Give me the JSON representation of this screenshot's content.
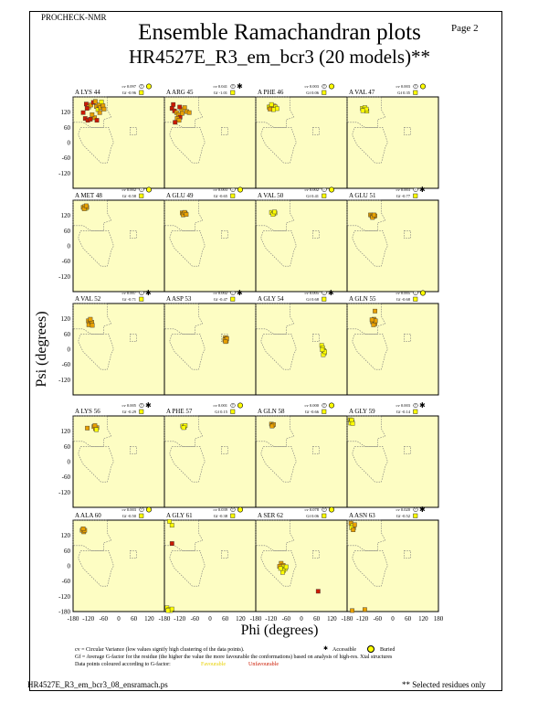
{
  "header": {
    "program": "PROCHECK-NMR",
    "page_label": "Page  2",
    "title": "Ensemble Ramachandran plots",
    "subtitle": "HR4527E_R3_em_bcr3 (20 models)**"
  },
  "footer": {
    "cv_note": "cv = Circular Variance (low values signify high clustering of the data points).",
    "gf_note": "Gf = Average G-factor for the residue (the higher the value the more favourable the conformations) based on analysis of high-res. Xtal structures",
    "colour_note": "Data points coloured according to G-factor:",
    "favourable_label": "Favourable",
    "unfavourable_label": "Unfavourable",
    "accessible_label": "Accessible",
    "buried_label": "Buried",
    "filename": "HR4527E_R3_em_bcr3_08_ensramach.ps",
    "selected_note": "** Selected residues only"
  },
  "colors": {
    "panel_bg": "#fdfdc3",
    "favourable": "#ffff00",
    "mid": "#e8a000",
    "unfavourable": "#cc1a00",
    "region_outline": "#777777"
  },
  "chart_data": {
    "type": "scatter",
    "xlabel": "Phi (degrees)",
    "ylabel": "Psi (degrees)",
    "xlim": [
      -180,
      180
    ],
    "ylim": [
      -180,
      180
    ],
    "xticks": [
      -180,
      -120,
      -60,
      0,
      60,
      120,
      180
    ],
    "yticks": [
      120,
      60,
      0,
      -60,
      -120
    ],
    "bottom_ytick": -180,
    "panels": [
      {
        "residue": "A LYS 44",
        "cv": "cv 0.097",
        "gf": "Gf -0.96",
        "acc": "buried",
        "points": [
          [
            -128,
            152,
            "u"
          ],
          [
            -118,
            140,
            "m"
          ],
          [
            -125,
            135,
            "u"
          ],
          [
            -110,
            148,
            "m"
          ],
          [
            -100,
            158,
            "u"
          ],
          [
            -92,
            162,
            "m"
          ],
          [
            -88,
            142,
            "m"
          ],
          [
            -82,
            130,
            "f"
          ],
          [
            -78,
            148,
            "m"
          ],
          [
            -72,
            138,
            "m"
          ],
          [
            -68,
            160,
            "f"
          ],
          [
            -62,
            145,
            "m"
          ],
          [
            -58,
            132,
            "m"
          ],
          [
            -140,
            118,
            "u"
          ],
          [
            -132,
            95,
            "u"
          ],
          [
            -122,
            88,
            "u"
          ],
          [
            -112,
            92,
            "u"
          ],
          [
            -95,
            98,
            "m"
          ],
          [
            -86,
            88,
            "u"
          ],
          [
            -75,
            118,
            "m"
          ],
          [
            -105,
            110,
            "m"
          ]
        ]
      },
      {
        "residue": "A ARG 45",
        "cv": "cv 0.041",
        "gf": "Gf -1.01",
        "acc": "accessible",
        "points": [
          [
            -150,
            135,
            "u"
          ],
          [
            -140,
            125,
            "u"
          ],
          [
            -132,
            118,
            "m"
          ],
          [
            -125,
            110,
            "m"
          ],
          [
            -118,
            100,
            "u"
          ],
          [
            -130,
            95,
            "m"
          ],
          [
            -122,
            88,
            "m"
          ],
          [
            -138,
            80,
            "u"
          ],
          [
            -112,
            130,
            "m"
          ],
          [
            -100,
            138,
            "m"
          ],
          [
            -92,
            122,
            "m"
          ],
          [
            -82,
            118,
            "m"
          ],
          [
            -145,
            150,
            "u"
          ],
          [
            -120,
            140,
            "u"
          ],
          [
            -110,
            115,
            "m"
          ]
        ]
      },
      {
        "residue": "A PHE 46",
        "cv": "cv 0.003",
        "gf": "Gf 0.06",
        "acc": "buried",
        "points": [
          [
            -128,
            140,
            "f"
          ],
          [
            -120,
            142,
            "f"
          ],
          [
            -114,
            136,
            "f"
          ],
          [
            -108,
            144,
            "m"
          ],
          [
            -102,
            140,
            "f"
          ],
          [
            -96,
            134,
            "f"
          ],
          [
            -110,
            130,
            "f"
          ],
          [
            -124,
            132,
            "m"
          ],
          [
            -118,
            150,
            "f"
          ]
        ]
      },
      {
        "residue": "A VAL 47",
        "cv": "cv 0.003",
        "gf": "Gf 0.35",
        "acc": "buried",
        "points": [
          [
            -120,
            135,
            "f"
          ],
          [
            -114,
            130,
            "f"
          ],
          [
            -108,
            128,
            "f"
          ],
          [
            -102,
            124,
            "f"
          ],
          [
            -110,
            138,
            "f"
          ],
          [
            -104,
            132,
            "f"
          ],
          [
            -118,
            126,
            "f"
          ]
        ]
      },
      {
        "residue": "A MET 48",
        "cv": "cv 0.002",
        "gf": "Gf -0.58",
        "acc": "buried",
        "points": [
          [
            -140,
            152,
            "m"
          ],
          [
            -134,
            155,
            "m"
          ],
          [
            -130,
            148,
            "f"
          ],
          [
            -126,
            152,
            "m"
          ],
          [
            -136,
            146,
            "m"
          ],
          [
            -128,
            158,
            "m"
          ]
        ]
      },
      {
        "residue": "A GLU 49",
        "cv": "cv 0.003",
        "gf": "Gf -0.65",
        "acc": "buried",
        "points": [
          [
            -110,
            130,
            "m"
          ],
          [
            -104,
            126,
            "m"
          ],
          [
            -98,
            128,
            "m"
          ],
          [
            -106,
            122,
            "m"
          ],
          [
            -100,
            132,
            "m"
          ],
          [
            -94,
            124,
            "m"
          ]
        ]
      },
      {
        "residue": "A VAL 50",
        "cv": "cv 0.002",
        "gf": "Gf 0.41",
        "acc": "buried",
        "points": [
          [
            -118,
            132,
            "f"
          ],
          [
            -110,
            128,
            "f"
          ],
          [
            -104,
            130,
            "f"
          ],
          [
            -112,
            124,
            "f"
          ],
          [
            -106,
            134,
            "f"
          ]
        ]
      },
      {
        "residue": "A GLU 51",
        "cv": "cv 0.003",
        "gf": "Gf -0.77",
        "acc": "accessible",
        "points": [
          [
            -88,
            122,
            "m"
          ],
          [
            -82,
            118,
            "m"
          ],
          [
            -76,
            116,
            "m"
          ],
          [
            -70,
            118,
            "m"
          ],
          [
            -80,
            112,
            "m"
          ],
          [
            -74,
            122,
            "m"
          ]
        ]
      },
      {
        "residue": "A VAL 52",
        "cv": "cv 0.007",
        "gf": "Gf -0.71",
        "acc": "accessible",
        "points": [
          [
            -120,
            112,
            "m"
          ],
          [
            -114,
            104,
            "m"
          ],
          [
            -110,
            98,
            "m"
          ],
          [
            -118,
            96,
            "m"
          ],
          [
            -106,
            106,
            "m"
          ],
          [
            -112,
            118,
            "m"
          ],
          [
            -104,
            94,
            "m"
          ]
        ]
      },
      {
        "residue": "A ASP 53",
        "cv": "cv 0.002",
        "gf": "Gf -0.47",
        "acc": "accessible",
        "points": [
          [
            60,
            45,
            "m"
          ],
          [
            62,
            38,
            "m"
          ],
          [
            64,
            32,
            "m"
          ],
          [
            58,
            36,
            "m"
          ],
          [
            66,
            42,
            "m"
          ],
          [
            61,
            30,
            "m"
          ]
        ]
      },
      {
        "residue": "A GLY 54",
        "cv": "cv 0.005",
        "gf": "Gf 0.68",
        "acc": "accessible",
        "points": [
          [
            80,
            15,
            "f"
          ],
          [
            84,
            5,
            "f"
          ],
          [
            88,
            -5,
            "f"
          ],
          [
            90,
            -15,
            "f"
          ],
          [
            86,
            -22,
            "f"
          ],
          [
            92,
            -10,
            "f"
          ],
          [
            82,
            -2,
            "f"
          ]
        ]
      },
      {
        "residue": "A GLN 55",
        "cv": "cv 0.005",
        "gf": "Gf -0.68",
        "acc": "buried",
        "points": [
          [
            -70,
            150,
            "m"
          ],
          [
            -74,
            118,
            "m"
          ],
          [
            -80,
            108,
            "m"
          ],
          [
            -70,
            100,
            "m"
          ],
          [
            -76,
            96,
            "m"
          ],
          [
            -68,
            112,
            "m"
          ],
          [
            -82,
            116,
            "m"
          ]
        ]
      },
      {
        "residue": "A LYS 56",
        "cv": "cv 0.005",
        "gf": "Gf -0.29",
        "acc": "accessible",
        "points": [
          [
            -124,
            132,
            "m"
          ],
          [
            -98,
            138,
            "m"
          ],
          [
            -92,
            130,
            "m"
          ],
          [
            -86,
            134,
            "m"
          ],
          [
            -94,
            142,
            "m"
          ],
          [
            -88,
            126,
            "f"
          ]
        ]
      },
      {
        "residue": "A PHE 57",
        "cv": "cv 0.001",
        "gf": "Gf 0.15",
        "acc": "buried",
        "points": [
          [
            -108,
            140,
            "f"
          ],
          [
            -102,
            136,
            "f"
          ],
          [
            -98,
            142,
            "f"
          ],
          [
            -104,
            134,
            "f"
          ]
        ]
      },
      {
        "residue": "A GLN 58",
        "cv": "cv 0.000",
        "gf": "Gf -0.66",
        "acc": "buried",
        "points": [
          [
            -118,
            148,
            "m"
          ],
          [
            -114,
            142,
            "m"
          ],
          [
            -110,
            146,
            "m"
          ],
          [
            -116,
            140,
            "m"
          ]
        ]
      },
      {
        "residue": "A GLY 59",
        "cv": "cv 0.003",
        "gf": "Gf -0.14",
        "acc": "accessible",
        "points": [
          [
            -168,
            165,
            "f"
          ],
          [
            -164,
            160,
            "f"
          ],
          [
            -160,
            156,
            "f"
          ],
          [
            -166,
            152,
            "f"
          ],
          [
            -162,
            164,
            "f"
          ],
          [
            -158,
            150,
            "f"
          ]
        ]
      },
      {
        "residue": "A ALA 60",
        "cv": "cv 0.003",
        "gf": "Gf -0.50",
        "acc": "buried",
        "points": [
          [
            -144,
            140,
            "m"
          ],
          [
            -138,
            134,
            "m"
          ],
          [
            -134,
            140,
            "m"
          ],
          [
            -140,
            146,
            "m"
          ]
        ]
      },
      {
        "residue": "A GLY 61",
        "cv": "cv 0.039",
        "gf": "Gf -0.38",
        "acc": "buried",
        "points": [
          [
            -160,
            175,
            "f"
          ],
          [
            -150,
            160,
            "f"
          ],
          [
            -150,
            88,
            "u"
          ],
          [
            -170,
            -165,
            "f"
          ],
          [
            -162,
            -172,
            "f"
          ],
          [
            -155,
            -176,
            "f"
          ],
          [
            -166,
            -176,
            "f"
          ],
          [
            -150,
            -170,
            "f"
          ]
        ]
      },
      {
        "residue": "A SER 62",
        "cv": "cv 0.078",
        "gf": "Gf 0.06",
        "acc": "buried",
        "points": [
          [
            -80,
            10,
            "m"
          ],
          [
            -72,
            2,
            "m"
          ],
          [
            -68,
            -8,
            "f"
          ],
          [
            -76,
            -4,
            "f"
          ],
          [
            -64,
            -12,
            "f"
          ],
          [
            -70,
            -18,
            "f"
          ],
          [
            -86,
            -2,
            "m"
          ],
          [
            -60,
            -4,
            "f"
          ],
          [
            -74,
            -26,
            "f"
          ],
          [
            -82,
            -10,
            "f"
          ],
          [
            66,
            -100,
            "u"
          ]
        ]
      },
      {
        "residue": "A ASN 63",
        "cv": "cv 0.020",
        "gf": "Gf -0.52",
        "acc": "accessible",
        "points": [
          [
            -165,
            168,
            "m"
          ],
          [
            -158,
            158,
            "f"
          ],
          [
            -154,
            150,
            "m"
          ],
          [
            -162,
            150,
            "f"
          ],
          [
            -150,
            162,
            "m"
          ],
          [
            -156,
            142,
            "m"
          ],
          [
            -160,
            -176,
            "m"
          ],
          [
            -110,
            -172,
            "m"
          ]
        ]
      }
    ]
  }
}
